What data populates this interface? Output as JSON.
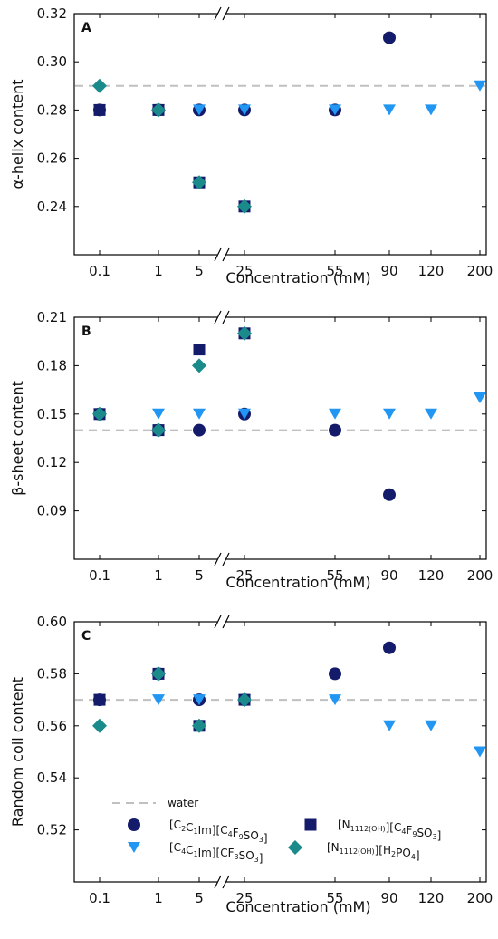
{
  "colors": {
    "navy": "#141b6b",
    "blue": "#2196f3",
    "teal": "#1a8a8a",
    "water": "#c0c0c0",
    "axis": "#000000"
  },
  "chart_data": [
    {
      "type": "scatter",
      "panel": "A",
      "ylabel": "α-helix content",
      "xlabel": "Concentration (mM)",
      "x_ticks": [
        "0.1",
        "1",
        "5",
        "25",
        "55",
        "90",
        "120",
        "200"
      ],
      "ylim": [
        0.22,
        0.32
      ],
      "y_ticks": [
        "0.24",
        "0.26",
        "0.28",
        "0.30",
        "0.32"
      ],
      "water": 0.29,
      "axis_break": "between 5 and 25",
      "series": [
        {
          "key": "c2c1im_c4f9so3",
          "marker": "circle",
          "color": "navy",
          "points": [
            [
              "0.1",
              0.28
            ],
            [
              "1",
              0.28
            ],
            [
              "5",
              0.28
            ],
            [
              "25",
              0.28
            ],
            [
              "55",
              0.28
            ],
            [
              "90",
              0.31
            ]
          ]
        },
        {
          "key": "c4c1im_cf3so3",
          "marker": "triangle-down",
          "color": "blue",
          "points": [
            [
              "0.1",
              0.28
            ],
            [
              "1",
              0.28
            ],
            [
              "5",
              0.28
            ],
            [
              "25",
              0.28
            ],
            [
              "55",
              0.28
            ],
            [
              "90",
              0.28
            ],
            [
              "120",
              0.28
            ],
            [
              "200",
              0.29
            ]
          ]
        },
        {
          "key": "n1112oh_c4f9so3",
          "marker": "square",
          "color": "navy",
          "points": [
            [
              "0.1",
              0.28
            ],
            [
              "1",
              0.28
            ],
            [
              "5",
              0.25
            ],
            [
              "25",
              0.24
            ]
          ]
        },
        {
          "key": "n1112oh_h2po4",
          "marker": "diamond",
          "color": "teal",
          "points": [
            [
              "0.1",
              0.29
            ],
            [
              "1",
              0.28
            ],
            [
              "5",
              0.25
            ],
            [
              "25",
              0.24
            ]
          ]
        }
      ]
    },
    {
      "type": "scatter",
      "panel": "B",
      "ylabel": "β-sheet content",
      "xlabel": "Concentration (mM)",
      "x_ticks": [
        "0.1",
        "1",
        "5",
        "25",
        "55",
        "90",
        "120",
        "200"
      ],
      "ylim": [
        0.06,
        0.21
      ],
      "y_ticks": [
        "0.09",
        "0.12",
        "0.15",
        "0.18",
        "0.21"
      ],
      "water": 0.14,
      "axis_break": "between 5 and 25",
      "series": [
        {
          "key": "c2c1im_c4f9so3",
          "marker": "circle",
          "color": "navy",
          "points": [
            [
              "0.1",
              0.15
            ],
            [
              "1",
              0.14
            ],
            [
              "5",
              0.14
            ],
            [
              "25",
              0.15
            ],
            [
              "55",
              0.14
            ],
            [
              "90",
              0.1
            ]
          ]
        },
        {
          "key": "c4c1im_cf3so3",
          "marker": "triangle-down",
          "color": "blue",
          "points": [
            [
              "0.1",
              0.15
            ],
            [
              "1",
              0.15
            ],
            [
              "5",
              0.15
            ],
            [
              "25",
              0.15
            ],
            [
              "55",
              0.15
            ],
            [
              "90",
              0.15
            ],
            [
              "120",
              0.15
            ],
            [
              "200",
              0.16
            ]
          ]
        },
        {
          "key": "n1112oh_c4f9so3",
          "marker": "square",
          "color": "navy",
          "points": [
            [
              "0.1",
              0.15
            ],
            [
              "1",
              0.14
            ],
            [
              "5",
              0.19
            ],
            [
              "25",
              0.2
            ]
          ]
        },
        {
          "key": "n1112oh_h2po4",
          "marker": "diamond",
          "color": "teal",
          "points": [
            [
              "0.1",
              0.15
            ],
            [
              "1",
              0.14
            ],
            [
              "5",
              0.18
            ],
            [
              "25",
              0.2
            ]
          ]
        }
      ]
    },
    {
      "type": "scatter",
      "panel": "C",
      "ylabel": "Random coil content",
      "xlabel": "Concentration (mM)",
      "x_ticks": [
        "0.1",
        "1",
        "5",
        "25",
        "55",
        "90",
        "120",
        "200"
      ],
      "ylim": [
        0.5,
        0.6
      ],
      "y_ticks": [
        "0.52",
        "0.54",
        "0.56",
        "0.58",
        "0.60"
      ],
      "water": 0.57,
      "axis_break": "between 5 and 25",
      "series": [
        {
          "key": "c2c1im_c4f9so3",
          "marker": "circle",
          "color": "navy",
          "points": [
            [
              "0.1",
              0.57
            ],
            [
              "1",
              0.58
            ],
            [
              "5",
              0.57
            ],
            [
              "25",
              0.57
            ],
            [
              "55",
              0.58
            ],
            [
              "90",
              0.59
            ]
          ]
        },
        {
          "key": "c4c1im_cf3so3",
          "marker": "triangle-down",
          "color": "blue",
          "points": [
            [
              "0.1",
              0.57
            ],
            [
              "1",
              0.57
            ],
            [
              "5",
              0.57
            ],
            [
              "25",
              0.57
            ],
            [
              "55",
              0.57
            ],
            [
              "90",
              0.56
            ],
            [
              "120",
              0.56
            ],
            [
              "200",
              0.55
            ]
          ]
        },
        {
          "key": "n1112oh_c4f9so3",
          "marker": "square",
          "color": "navy",
          "points": [
            [
              "0.1",
              0.57
            ],
            [
              "1",
              0.58
            ],
            [
              "5",
              0.56
            ],
            [
              "25",
              0.57
            ]
          ]
        },
        {
          "key": "n1112oh_h2po4",
          "marker": "diamond",
          "color": "teal",
          "points": [
            [
              "0.1",
              0.56
            ],
            [
              "1",
              0.58
            ],
            [
              "5",
              0.56
            ],
            [
              "25",
              0.57
            ]
          ]
        }
      ]
    }
  ],
  "legend": {
    "placement": "bottom-left of panel C",
    "water_label": "water",
    "entries": [
      {
        "key": "c2c1im_c4f9so3",
        "marker": "circle",
        "color": "navy",
        "label": "[C2C1Im][C4F9SO3]",
        "parts": [
          [
            "[C",
            ""
          ],
          [
            "2",
            "sub"
          ],
          [
            "C",
            ""
          ],
          [
            "1",
            "sub"
          ],
          [
            "Im][C",
            ""
          ],
          [
            "4",
            "sub"
          ],
          [
            "F",
            ""
          ],
          [
            "9",
            "sub"
          ],
          [
            "SO",
            ""
          ],
          [
            "3",
            "sub"
          ],
          [
            "]",
            ""
          ]
        ]
      },
      {
        "key": "n1112oh_c4f9so3",
        "marker": "square",
        "color": "navy",
        "label": "[N1112(OH)][C4F9SO3]",
        "parts": [
          [
            "[N",
            ""
          ],
          [
            "1112(OH)",
            "sub"
          ],
          [
            "][C",
            ""
          ],
          [
            "4",
            "sub"
          ],
          [
            "F",
            ""
          ],
          [
            "9",
            "sub"
          ],
          [
            "SO",
            ""
          ],
          [
            "3",
            "sub"
          ],
          [
            "]",
            ""
          ]
        ]
      },
      {
        "key": "c4c1im_cf3so3",
        "marker": "triangle-down",
        "color": "blue",
        "label": "[C4C1Im][CF3SO3]",
        "parts": [
          [
            "[C",
            ""
          ],
          [
            "4",
            "sub"
          ],
          [
            "C",
            ""
          ],
          [
            "1",
            "sub"
          ],
          [
            "Im][CF",
            ""
          ],
          [
            "3",
            "sub"
          ],
          [
            "SO",
            ""
          ],
          [
            "3",
            "sub"
          ],
          [
            "]",
            ""
          ]
        ]
      },
      {
        "key": "n1112oh_h2po4",
        "marker": "diamond",
        "color": "teal",
        "label": "[N1112(OH)][H2PO4]",
        "parts": [
          [
            "[N",
            ""
          ],
          [
            "1112(OH)",
            "sub"
          ],
          [
            "][H",
            ""
          ],
          [
            "2",
            "sub"
          ],
          [
            "PO",
            ""
          ],
          [
            "4",
            "sub"
          ],
          [
            "]",
            ""
          ]
        ]
      }
    ]
  }
}
